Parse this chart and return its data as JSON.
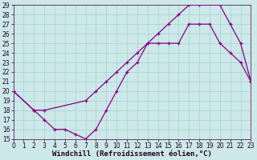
{
  "xlabel": "Windchill (Refroidissement éolien,°C)",
  "xlim": [
    0,
    23
  ],
  "ylim": [
    15,
    29
  ],
  "xticks": [
    0,
    1,
    2,
    3,
    4,
    5,
    6,
    7,
    8,
    9,
    10,
    11,
    12,
    13,
    14,
    15,
    16,
    17,
    18,
    19,
    20,
    21,
    22,
    23
  ],
  "yticks": [
    15,
    16,
    17,
    18,
    19,
    20,
    21,
    22,
    23,
    24,
    25,
    26,
    27,
    28,
    29
  ],
  "bg_color": "#cce8e8",
  "line_color": "#880088",
  "grid_color": "#aad4d4",
  "curve1_x": [
    0,
    2,
    3,
    4,
    5,
    6,
    7,
    8,
    9,
    10,
    11,
    12,
    13,
    14,
    15,
    16,
    17,
    18,
    20,
    21,
    22,
    23
  ],
  "curve1_y": [
    20,
    18,
    17,
    16,
    16,
    15.5,
    15,
    16,
    18,
    20,
    22,
    23,
    25,
    26,
    27,
    28,
    29,
    29,
    29,
    27,
    25,
    21
  ],
  "curve2_x": [
    0,
    2,
    3,
    7,
    8,
    9,
    10,
    11,
    12,
    13,
    14,
    15,
    16,
    17,
    18,
    19,
    20,
    21,
    22,
    23
  ],
  "curve2_y": [
    20,
    18,
    18,
    19,
    20,
    21,
    22,
    23,
    24,
    25,
    25,
    25,
    25,
    27,
    27,
    27,
    25,
    24,
    23,
    21
  ],
  "tick_fontsize": 5.5,
  "label_fontsize": 6.5
}
